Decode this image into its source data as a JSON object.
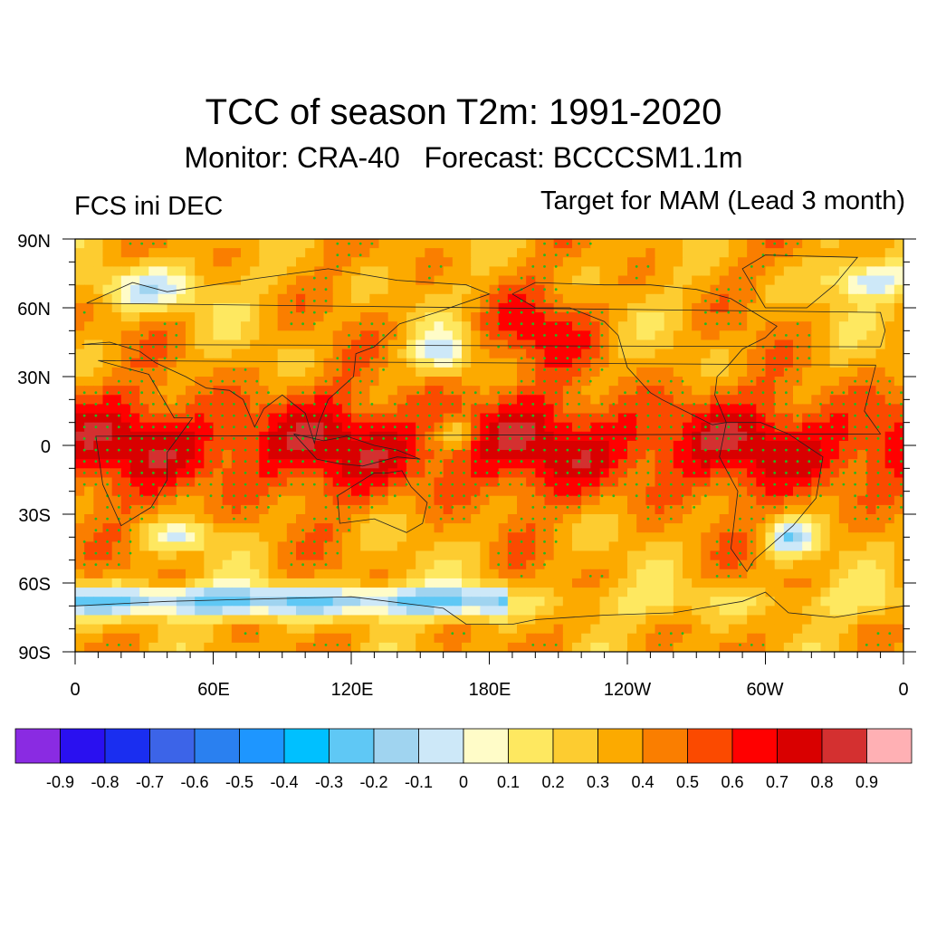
{
  "title": "TCC of season T2m: 1991-2020",
  "subtitle": "Monitor: CRA-40   Forecast: BCCCSM1.1m",
  "left_label": "FCS ini DEC",
  "right_label": "Target for MAM (Lead 3 month)",
  "map": {
    "lat_ticks": [
      "90N",
      "60N",
      "30N",
      "0",
      "30S",
      "60S",
      "90S"
    ],
    "lon_ticks": [
      "0",
      "60E",
      "120E",
      "180E",
      "120W",
      "60W",
      "0"
    ],
    "stipple_color": "#22bb22",
    "field_description_rows": [
      {
        "lat": 90,
        "values": [
          0.4,
          0.5,
          0.5,
          0.5,
          0.4,
          0.3
        ]
      },
      {
        "lat": 0,
        "values": [
          0.6,
          0.7,
          0.7,
          0.8,
          0.6,
          0.5
        ]
      },
      {
        "lat": -90,
        "values": [
          0.3,
          0.2,
          0.1,
          0.2,
          0.3,
          0.4
        ]
      }
    ]
  },
  "colorbar": {
    "colors": [
      "#8a2be2",
      "#2a10f0",
      "#1a2ef0",
      "#3c64e8",
      "#2a80f0",
      "#1e96ff",
      "#00c0ff",
      "#5fc8f5",
      "#a0d4f0",
      "#cde8f8",
      "#fffcc8",
      "#fee860",
      "#fdcc30",
      "#fcaa00",
      "#fa7e00",
      "#fb4a00",
      "#ff0000",
      "#d90000",
      "#d43030",
      "#ffb0b4"
    ],
    "labels": [
      "-0.9",
      "-0.8",
      "-0.7",
      "-0.6",
      "-0.5",
      "-0.4",
      "-0.3",
      "-0.2",
      "-0.1",
      "0",
      "0.1",
      "0.2",
      "0.3",
      "0.4",
      "0.5",
      "0.6",
      "0.7",
      "0.8",
      "0.9"
    ]
  }
}
